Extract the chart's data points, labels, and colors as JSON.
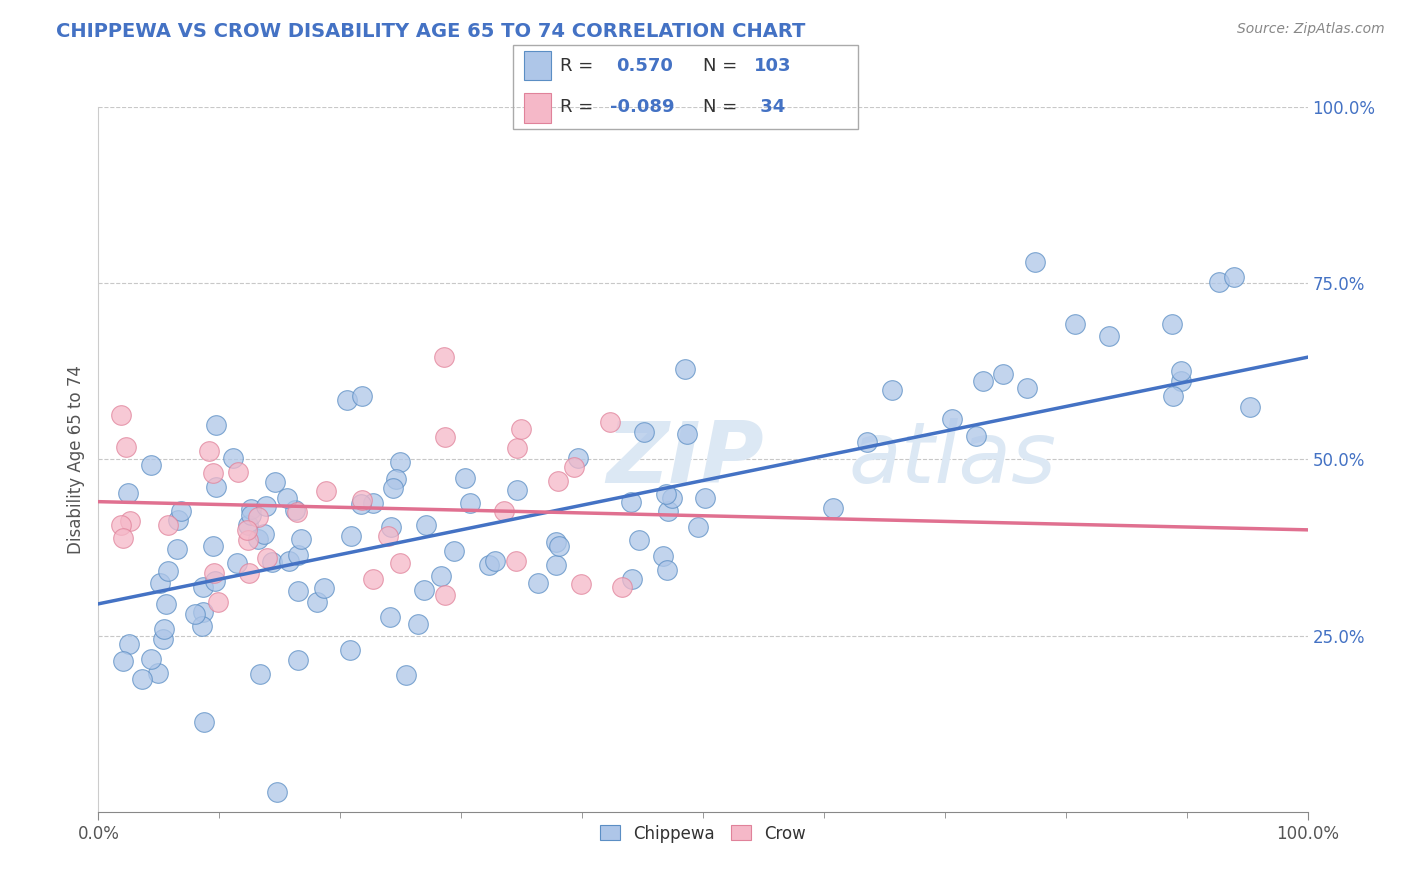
{
  "title": "CHIPPEWA VS CROW DISABILITY AGE 65 TO 74 CORRELATION CHART",
  "source_text": "Source: ZipAtlas.com",
  "ylabel": "Disability Age 65 to 74",
  "xlim": [
    0.0,
    1.0
  ],
  "ylim": [
    0.0,
    1.0
  ],
  "xticks": [
    0.0,
    1.0
  ],
  "xticklabels": [
    "0.0%",
    "100.0%"
  ],
  "yticks": [
    0.25,
    0.5,
    0.75,
    1.0
  ],
  "yticklabels": [
    "25.0%",
    "50.0%",
    "75.0%",
    "100.0%"
  ],
  "chippewa_color": "#aec6e8",
  "crow_color": "#f5b8c8",
  "chippewa_edge_color": "#5b8ec4",
  "crow_edge_color": "#e0829a",
  "chippewa_line_color": "#4472c4",
  "crow_line_color": "#e07090",
  "chippewa_R": 0.57,
  "chippewa_N": 103,
  "crow_R": -0.089,
  "crow_N": 34,
  "background_color": "#ffffff",
  "grid_color": "#c8c8c8",
  "legend_text_color": "#4472c4",
  "title_color": "#4472c4",
  "title_fontsize": 14,
  "watermark_color": "#dce8f4"
}
